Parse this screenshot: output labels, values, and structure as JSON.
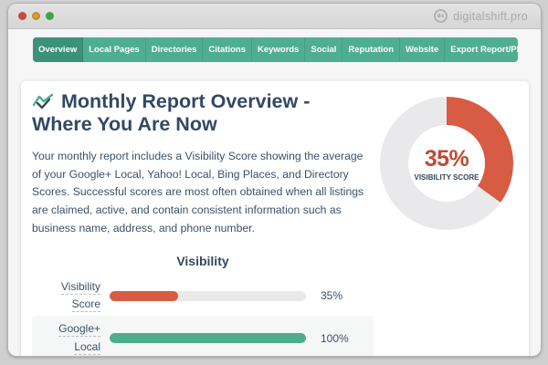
{
  "window": {
    "site_label": "digitalshift.pro",
    "favicon_monogram": "ds"
  },
  "nav": {
    "tabs": [
      {
        "label": "Overview",
        "active": true
      },
      {
        "label": "Local Pages",
        "active": false
      },
      {
        "label": "Directories",
        "active": false
      },
      {
        "label": "Citations",
        "active": false
      },
      {
        "label": "Keywords",
        "active": false
      },
      {
        "label": "Social",
        "active": false
      },
      {
        "label": "Reputation",
        "active": false
      },
      {
        "label": "Website",
        "active": false
      },
      {
        "label": "Export Report/PDF",
        "active": false
      }
    ]
  },
  "main": {
    "heading": "Monthly Report Overview - Where You Are Now",
    "paragraph": "Your monthly report includes a Visibility Score showing the average of your Google+ Local, Yahoo! Local, Bing Places, and Directory Scores. Successful scores are most often obtained when all listings are claimed, active, and contain consistent information such as business name, address, and phone number."
  },
  "donut": {
    "percent": 35,
    "value_label": "35%",
    "caption": "VISIBILITY SCORE"
  },
  "visibility_table": {
    "title": "Visibility",
    "rows": [
      {
        "label_line1": "Visibility",
        "label_line2": "Score",
        "value": 35,
        "value_label": "35%",
        "color": "#d85b43"
      },
      {
        "label_line1": "Google+",
        "label_line2": "Local",
        "value": 100,
        "value_label": "100%",
        "color": "#4dad8d"
      }
    ]
  },
  "chart_data": [
    {
      "type": "pie",
      "subtype": "donut",
      "labels": [
        "Visibility Score",
        "Remaining"
      ],
      "values": [
        35,
        65
      ],
      "colors": [
        "#d85b43",
        "#e9e9eb"
      ],
      "center_value": "35%",
      "center_label": "VISIBILITY SCORE",
      "start_angle": "top",
      "direction": "clockwise"
    },
    {
      "type": "bar",
      "orientation": "horizontal",
      "title": "Visibility",
      "categories": [
        "Visibility Score",
        "Google+ Local"
      ],
      "values": [
        35,
        100
      ],
      "value_labels": [
        "35%",
        "100%"
      ],
      "colors": [
        "#d85b43",
        "#4dad8d"
      ],
      "xlim": [
        0,
        100
      ]
    }
  ],
  "colors": {
    "nav_green": "#4fae90",
    "nav_active": "#3b9277",
    "accent_red": "#d85b43",
    "accent_green": "#4dad8d",
    "navy_text": "#33475f",
    "donut_grey": "#e9e9eb",
    "track_grey": "#e9e9e9"
  }
}
